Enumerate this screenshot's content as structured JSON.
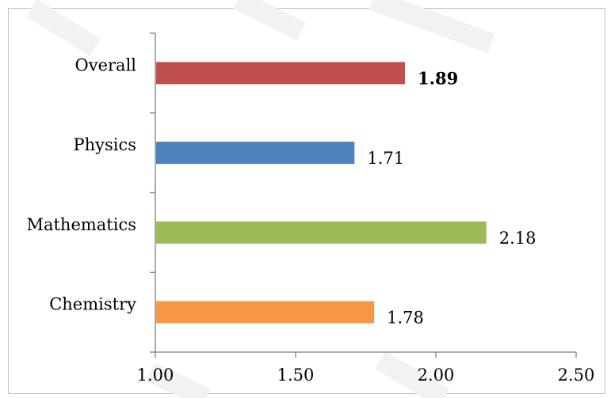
{
  "chart_data": {
    "type": "bar",
    "orientation": "horizontal",
    "categories": [
      "Overall",
      "Physics",
      "Mathematics",
      "Chemistry"
    ],
    "values": [
      1.89,
      1.71,
      2.18,
      1.78
    ],
    "value_labels": [
      "1.89",
      "1.71",
      "2.18",
      "1.78"
    ],
    "bold_labels": [
      true,
      false,
      false,
      false
    ],
    "colors": [
      "#c0504d",
      "#4f81bd",
      "#9bbb59",
      "#f79646"
    ],
    "xlim": [
      1.0,
      2.5
    ],
    "x_ticks": [
      "1.00",
      "1.50",
      "2.00",
      "2.50"
    ],
    "x_tick_values": [
      1.0,
      1.5,
      2.0,
      2.5
    ],
    "title": "",
    "xlabel": "",
    "ylabel": "",
    "grid": false,
    "legend": "none"
  }
}
